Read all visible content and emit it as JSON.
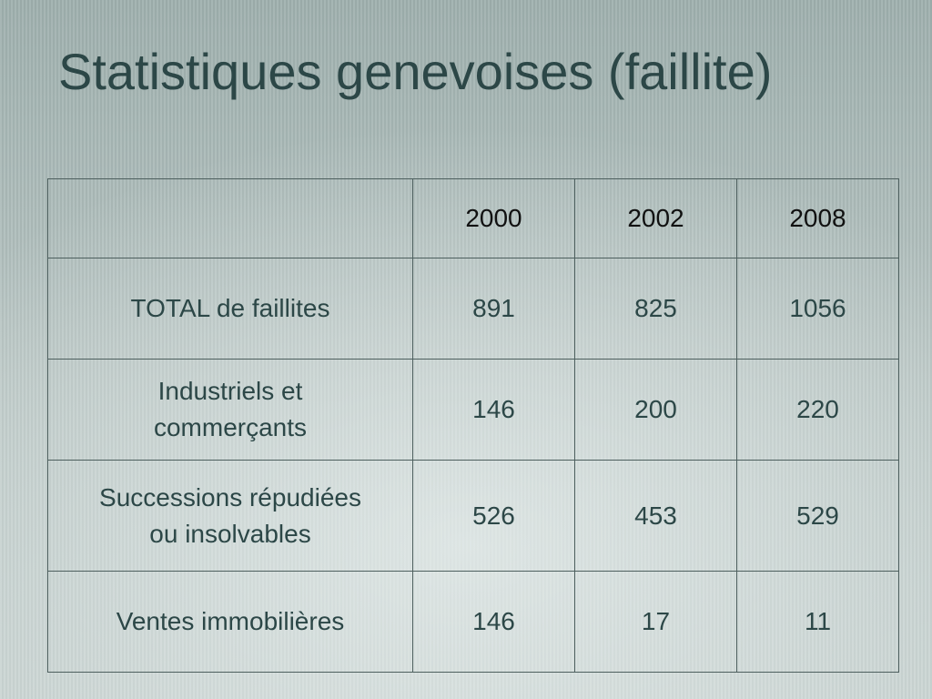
{
  "slide": {
    "title": "Statistiques genevoises (faillite)"
  },
  "table": {
    "header": [
      "",
      "2000",
      "2002",
      "2008"
    ],
    "rows": [
      {
        "label_lines": [
          "TOTAL de faillites"
        ],
        "values": [
          "891",
          "825",
          "1056"
        ]
      },
      {
        "label_lines": [
          "Industriels et",
          "commerçants"
        ],
        "values": [
          "146",
          "200",
          "220"
        ]
      },
      {
        "label_lines": [
          "Successions répudiées",
          "ou insolvables"
        ],
        "values": [
          "526",
          "453",
          "529"
        ]
      },
      {
        "label_lines": [
          "Ventes immobilières"
        ],
        "values": [
          "146",
          "17",
          "11"
        ]
      }
    ]
  },
  "colors": {
    "title": "#2c4747",
    "label_text": "#2c4747",
    "header_text": "#111111",
    "value_text": "#ee1111",
    "border": "#4d5f5e"
  }
}
